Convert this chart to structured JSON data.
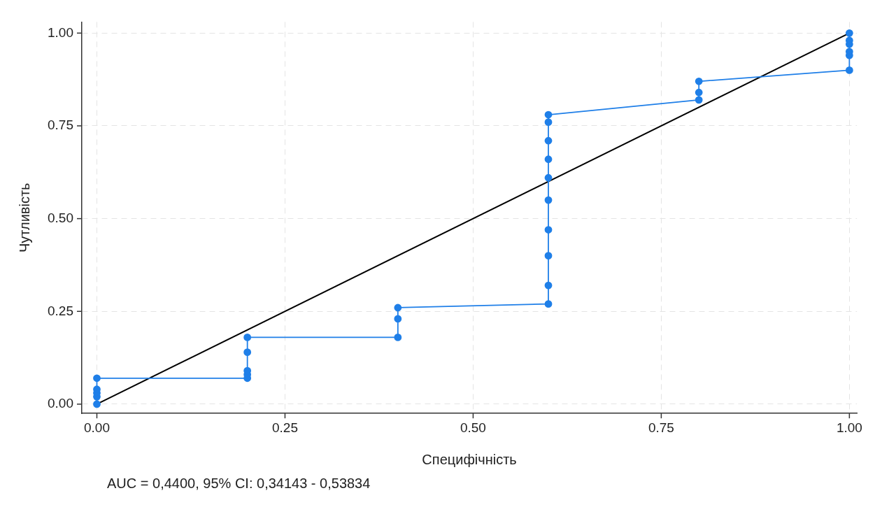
{
  "chart_data": {
    "type": "line",
    "xlabel": "Специфічність",
    "ylabel": "Чутливість",
    "xlim": [
      -0.02,
      1.01
    ],
    "ylim": [
      -0.025,
      1.03
    ],
    "xticks": [
      {
        "value": 0,
        "label": "0.00"
      },
      {
        "value": 0.25,
        "label": "0.25"
      },
      {
        "value": 0.5,
        "label": "0.50"
      },
      {
        "value": 0.75,
        "label": "0.75"
      },
      {
        "value": 1,
        "label": "1.00"
      }
    ],
    "yticks": [
      {
        "value": 0,
        "label": "0.00"
      },
      {
        "value": 0.25,
        "label": "0.25"
      },
      {
        "value": 0.5,
        "label": "0.50"
      },
      {
        "value": 0.75,
        "label": "0.75"
      },
      {
        "value": 1,
        "label": "1.00"
      }
    ],
    "grid": true,
    "legend": false,
    "annotations": [
      "AUC = 0,4400, 95% CI: 0,34143 - 0,53834"
    ],
    "series": [
      {
        "color": "#1f7fe8",
        "marker": "circle",
        "x": [
          0,
          0,
          0,
          0,
          0,
          0.2,
          0.2,
          0.2,
          0.2,
          0.2,
          0.4,
          0.4,
          0.4,
          0.6,
          0.6,
          0.6,
          0.6,
          0.6,
          0.6,
          0.6,
          0.6,
          0.6,
          0.6,
          0.8,
          0.8,
          0.8,
          1,
          1,
          1,
          1,
          1,
          1
        ],
        "values": [
          0,
          0.02,
          0.03,
          0.04,
          0.07,
          0.07,
          0.08,
          0.09,
          0.14,
          0.18,
          0.18,
          0.23,
          0.26,
          0.27,
          0.32,
          0.4,
          0.47,
          0.55,
          0.61,
          0.66,
          0.71,
          0.76,
          0.78,
          0.82,
          0.84,
          0.87,
          0.9,
          0.94,
          0.95,
          0.97,
          0.98,
          1
        ]
      },
      {
        "color": "#000000",
        "marker": "none",
        "x": [
          0,
          1
        ],
        "values": [
          0,
          1
        ]
      }
    ]
  }
}
